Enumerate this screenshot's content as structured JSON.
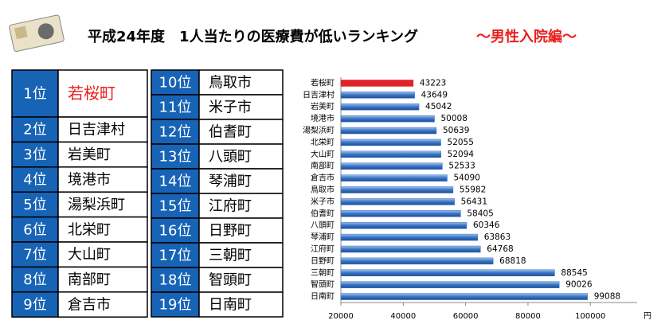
{
  "header": {
    "title": "平成24年度　1人当たりの医療費が低いランキング",
    "subtitle": "～男性入院編～",
    "subtitle_color": "#e8201e"
  },
  "ranking": {
    "highlight_color": "#e8201e",
    "rank_color": "#1763b6",
    "left": [
      [
        "1位",
        "若桜町"
      ],
      [
        "2位",
        "日吉津村"
      ],
      [
        "3位",
        "岩美町"
      ],
      [
        "4位",
        "境港市"
      ],
      [
        "5位",
        "湯梨浜町"
      ],
      [
        "6位",
        "北栄町"
      ],
      [
        "7位",
        "大山町"
      ],
      [
        "8位",
        "南部町"
      ],
      [
        "9位",
        "倉吉市"
      ]
    ],
    "right": [
      [
        "10位",
        "鳥取市"
      ],
      [
        "11位",
        "米子市"
      ],
      [
        "12位",
        "伯耆町"
      ],
      [
        "13位",
        "八頭町"
      ],
      [
        "14位",
        "琴浦町"
      ],
      [
        "15位",
        "江府町"
      ],
      [
        "16位",
        "日野町"
      ],
      [
        "17位",
        "三朝町"
      ],
      [
        "18位",
        "智頭町"
      ],
      [
        "19位",
        "日南町"
      ]
    ]
  },
  "chart_data": {
    "type": "barh",
    "categories": [
      "若桜町",
      "日吉津村",
      "岩美町",
      "境港市",
      "湯梨浜町",
      "北栄町",
      "大山町",
      "南部町",
      "倉吉市",
      "鳥取市",
      "米子市",
      "伯耆町",
      "八頭町",
      "琴浦町",
      "江府町",
      "日野町",
      "三朝町",
      "智頭町",
      "日南町"
    ],
    "values": [
      43223,
      43649,
      45042,
      50008,
      50639,
      52055,
      52094,
      52533,
      54090,
      55982,
      56431,
      58405,
      60346,
      63863,
      64768,
      68818,
      88545,
      90026,
      99088
    ],
    "colors": [
      "#e0222a",
      "#3a74c4",
      "#3a74c4",
      "#3a74c4",
      "#3a74c4",
      "#3a74c4",
      "#3a74c4",
      "#3a74c4",
      "#3a74c4",
      "#3a74c4",
      "#3a74c4",
      "#3a74c4",
      "#3a74c4",
      "#3a74c4",
      "#3a74c4",
      "#3a74c4",
      "#3a74c4",
      "#3a74c4",
      "#3a74c4"
    ],
    "xlim": [
      20000,
      115000
    ],
    "xticks": [
      20000,
      40000,
      60000,
      80000,
      100000
    ],
    "xlabel": "円"
  }
}
